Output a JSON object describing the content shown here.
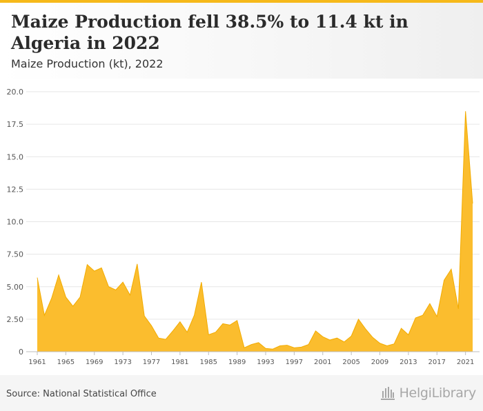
{
  "header": {
    "title": "Maize Production fell 38.5% to 11.4 kt in Algeria in 2022",
    "subtitle": "Maize Production (kt), 2022"
  },
  "footer": {
    "source": "Source: National Statistical Office",
    "logo_text": "HelgiLibrary"
  },
  "colors": {
    "accent": "#f6b91a",
    "area_fill": "#fbbd2e",
    "area_stroke": "#f2ab00"
  },
  "chart_data": {
    "type": "area",
    "title": "Maize Production fell 38.5% to 11.4 kt in Algeria in 2022",
    "subtitle": "Maize Production (kt), 2022",
    "xlabel": "",
    "ylabel": "",
    "ylim": [
      0,
      20
    ],
    "yticks": [
      0,
      2.5,
      5,
      7.5,
      10,
      12.5,
      15,
      17.5,
      20
    ],
    "ytick_labels": [
      "0",
      "2.50",
      "5.00",
      "7.50",
      "10.0",
      "12.5",
      "15.0",
      "17.5",
      "20.0"
    ],
    "xticks": [
      1961,
      1965,
      1969,
      1973,
      1977,
      1981,
      1985,
      1989,
      1993,
      1997,
      2001,
      2005,
      2009,
      2013,
      2017,
      2021
    ],
    "grid": true,
    "legend": "none",
    "x": [
      1961,
      1962,
      1963,
      1964,
      1965,
      1966,
      1967,
      1968,
      1969,
      1970,
      1971,
      1972,
      1973,
      1974,
      1975,
      1976,
      1977,
      1978,
      1979,
      1980,
      1981,
      1982,
      1983,
      1984,
      1985,
      1986,
      1987,
      1988,
      1989,
      1990,
      1991,
      1992,
      1993,
      1994,
      1995,
      1996,
      1997,
      1998,
      1999,
      2000,
      2001,
      2002,
      2003,
      2004,
      2005,
      2006,
      2007,
      2008,
      2009,
      2010,
      2011,
      2012,
      2013,
      2014,
      2015,
      2016,
      2017,
      2018,
      2019,
      2020,
      2021,
      2022
    ],
    "series": [
      {
        "values": [
          5.7,
          2.8,
          4.1,
          5.9,
          4.2,
          3.5,
          4.2,
          6.7,
          6.2,
          6.45,
          5.0,
          4.75,
          5.35,
          4.35,
          6.75,
          2.75,
          2.0,
          1.05,
          0.95,
          1.6,
          2.3,
          1.5,
          2.8,
          5.35,
          1.3,
          1.5,
          2.15,
          2.05,
          2.4,
          0.3,
          0.55,
          0.7,
          0.25,
          0.2,
          0.45,
          0.5,
          0.3,
          0.35,
          0.55,
          1.6,
          1.15,
          0.9,
          1.05,
          0.75,
          1.2,
          2.5,
          1.75,
          1.1,
          0.65,
          0.45,
          0.6,
          1.8,
          1.3,
          2.6,
          2.8,
          3.7,
          2.7,
          5.5,
          6.35,
          3.3,
          18.5,
          11.4
        ]
      }
    ]
  }
}
